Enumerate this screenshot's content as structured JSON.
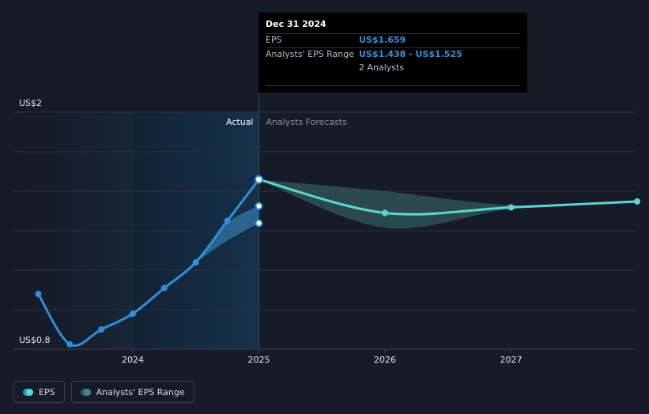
{
  "chart_data": {
    "type": "line",
    "x_unit": "year",
    "xlim": [
      2023.0,
      2028.0
    ],
    "ylim": [
      0.8,
      2.0
    ],
    "y_tick_labels": [
      {
        "value": 2.0,
        "label": "US$2"
      },
      {
        "value": 0.8,
        "label": "US$0.8"
      }
    ],
    "gridlines_y": [
      2.0,
      1.8,
      1.6,
      1.4,
      1.2,
      1.0
    ],
    "x_ticks": [
      {
        "value": 2024,
        "label": "2024"
      },
      {
        "value": 2025,
        "label": "2025"
      },
      {
        "value": 2026,
        "label": "2026"
      },
      {
        "value": 2027,
        "label": "2027"
      }
    ],
    "grid": true,
    "divider_x": 2025.0,
    "region_labels": {
      "actual": "Actual",
      "forecast": "Analysts Forecasts"
    },
    "series": [
      {
        "name": "EPS",
        "role": "actual",
        "color": "#2f8fd8",
        "points": [
          {
            "x": 2023.25,
            "y": 1.08
          },
          {
            "x": 2023.5,
            "y": 0.825
          },
          {
            "x": 2023.75,
            "y": 0.9
          },
          {
            "x": 2024.0,
            "y": 0.98
          },
          {
            "x": 2024.25,
            "y": 1.11
          },
          {
            "x": 2024.5,
            "y": 1.24
          },
          {
            "x": 2024.75,
            "y": 1.45
          },
          {
            "x": 2025.0,
            "y": 1.659
          }
        ]
      },
      {
        "name": "EPS",
        "role": "forecast",
        "color": "#5ad6d0",
        "points": [
          {
            "x": 2025.0,
            "y": 1.659
          },
          {
            "x": 2026.0,
            "y": 1.49
          },
          {
            "x": 2027.0,
            "y": 1.518
          },
          {
            "x": 2028.0,
            "y": 1.548
          }
        ]
      }
    ],
    "ranges": [
      {
        "name": "Analysts' EPS Range",
        "role": "actual",
        "color": "#2d6e9e",
        "points": [
          {
            "x": 2024.25,
            "y_low": 1.11,
            "y_high": 1.11
          },
          {
            "x": 2024.5,
            "y_low": 1.24,
            "y_high": 1.25
          },
          {
            "x": 2024.75,
            "y_low": 1.35,
            "y_high": 1.44
          },
          {
            "x": 2025.0,
            "y_low": 1.438,
            "y_high": 1.525
          }
        ],
        "markers": [
          {
            "x": 2025.0,
            "y": 1.525
          },
          {
            "x": 2025.0,
            "y": 1.438
          }
        ]
      },
      {
        "name": "Analysts' EPS Range",
        "role": "forecast",
        "color": "#3e6e6e",
        "points": [
          {
            "x": 2025.0,
            "y_low": 1.659,
            "y_high": 1.659
          },
          {
            "x": 2026.0,
            "y_low": 1.415,
            "y_high": 1.6
          },
          {
            "x": 2027.0,
            "y_low": 1.51,
            "y_high": 1.53
          },
          {
            "x": 2028.0,
            "y_low": 1.548,
            "y_high": 1.548
          }
        ]
      }
    ]
  },
  "tooltip": {
    "date": "Dec 31 2024",
    "rows": [
      {
        "label": "EPS",
        "value": "US$1.659"
      },
      {
        "label": "Analysts' EPS Range",
        "value": "US$1.438 - US$1.525"
      },
      {
        "label": "",
        "value": "2 Analysts"
      }
    ]
  },
  "legend": {
    "eps_label": "EPS",
    "range_label": "Analysts' EPS Range"
  }
}
